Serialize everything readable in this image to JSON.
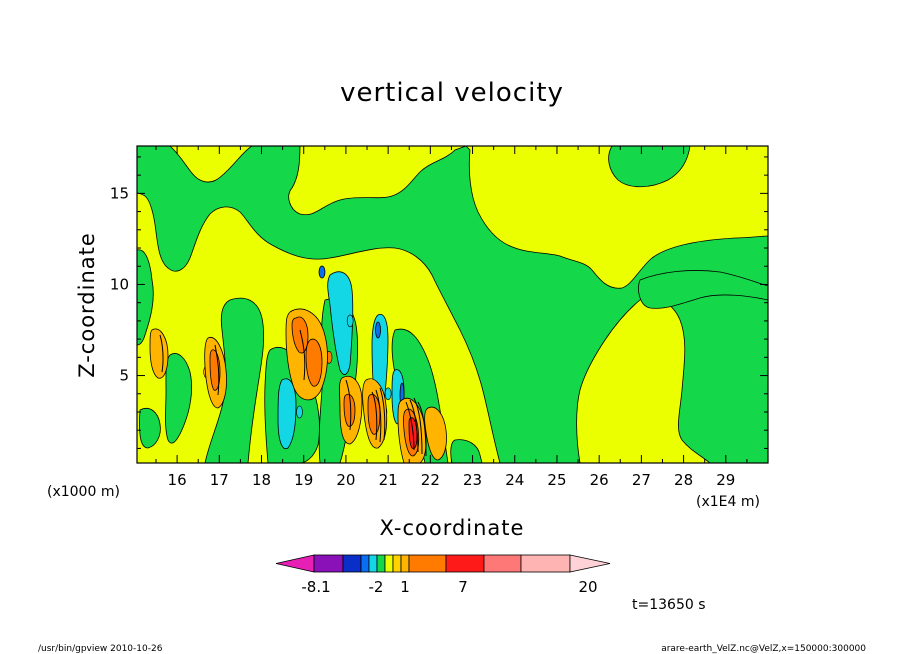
{
  "chart_data": {
    "type": "heatmap",
    "title": "vertical velocity",
    "xlabel": "X-coordinate",
    "ylabel": "Z-coordinate",
    "x_unit_label": "(x1E4 m)",
    "y_unit_label": "(x1000 m)",
    "xlim": [
      15.05,
      30.0
    ],
    "ylim": [
      0.2,
      17.6
    ],
    "x_ticks": [
      "16",
      "17",
      "18",
      "19",
      "20",
      "21",
      "22",
      "23",
      "24",
      "25",
      "26",
      "27",
      "28",
      "29"
    ],
    "y_ticks": [
      "5",
      "10",
      "15"
    ],
    "colorbar": {
      "colors": [
        "#e620b4",
        "#8a10b8",
        "#0a2ec8",
        "#0a6ef0",
        "#14d7e6",
        "#14d74a",
        "#ecff00",
        "#ffd200",
        "#ffb400",
        "#ff7b00",
        "#ff1a1a",
        "#ff7878",
        "#ffb4b4",
        "#ffd2d8"
      ],
      "labels": [
        "-8.1",
        "-2",
        "1",
        "7",
        "20"
      ]
    },
    "background_level": "yellow (0 to 1) and green (-1 to 0)",
    "cells": [
      {
        "x": 16.7,
        "z": 5.2,
        "color": "#ffb400"
      },
      {
        "x": 16.8,
        "z": 5.5,
        "color": "#ff7b00"
      },
      {
        "x": 19.1,
        "z": 6.5,
        "color": "#ffb400"
      },
      {
        "x": 19.3,
        "z": 5.8,
        "color": "#ff7b00"
      },
      {
        "x": 19.6,
        "z": 6.0,
        "color": "#ff7b00"
      },
      {
        "x": 20.1,
        "z": 8.0,
        "color": "#14d7e6"
      },
      {
        "x": 18.9,
        "z": 3.0,
        "color": "#14d7e6"
      },
      {
        "x": 20.6,
        "z": 3.0,
        "color": "#ffb400"
      },
      {
        "x": 20.9,
        "z": 3.0,
        "color": "#ff7b00"
      },
      {
        "x": 21.0,
        "z": 4.0,
        "color": "#14d7e6"
      },
      {
        "x": 21.6,
        "z": 2.5,
        "color": "#ff7b00"
      },
      {
        "x": 21.8,
        "z": 2.2,
        "color": "#ff1a1a"
      }
    ]
  },
  "text": {
    "t_label": "t=13650 s",
    "footer_left": "/usr/bin/gpview   2010-10-26",
    "footer_right": "arare-earth_VelZ.nc@VelZ,x=150000:300000"
  },
  "colors": {
    "yellow": "#ecff00",
    "green": "#14d74a",
    "cyan": "#14d7e6",
    "blue": "#0a6ef0",
    "orange": "#ffb400",
    "dark_orange": "#ff7b00",
    "red": "#ff1a1a"
  }
}
